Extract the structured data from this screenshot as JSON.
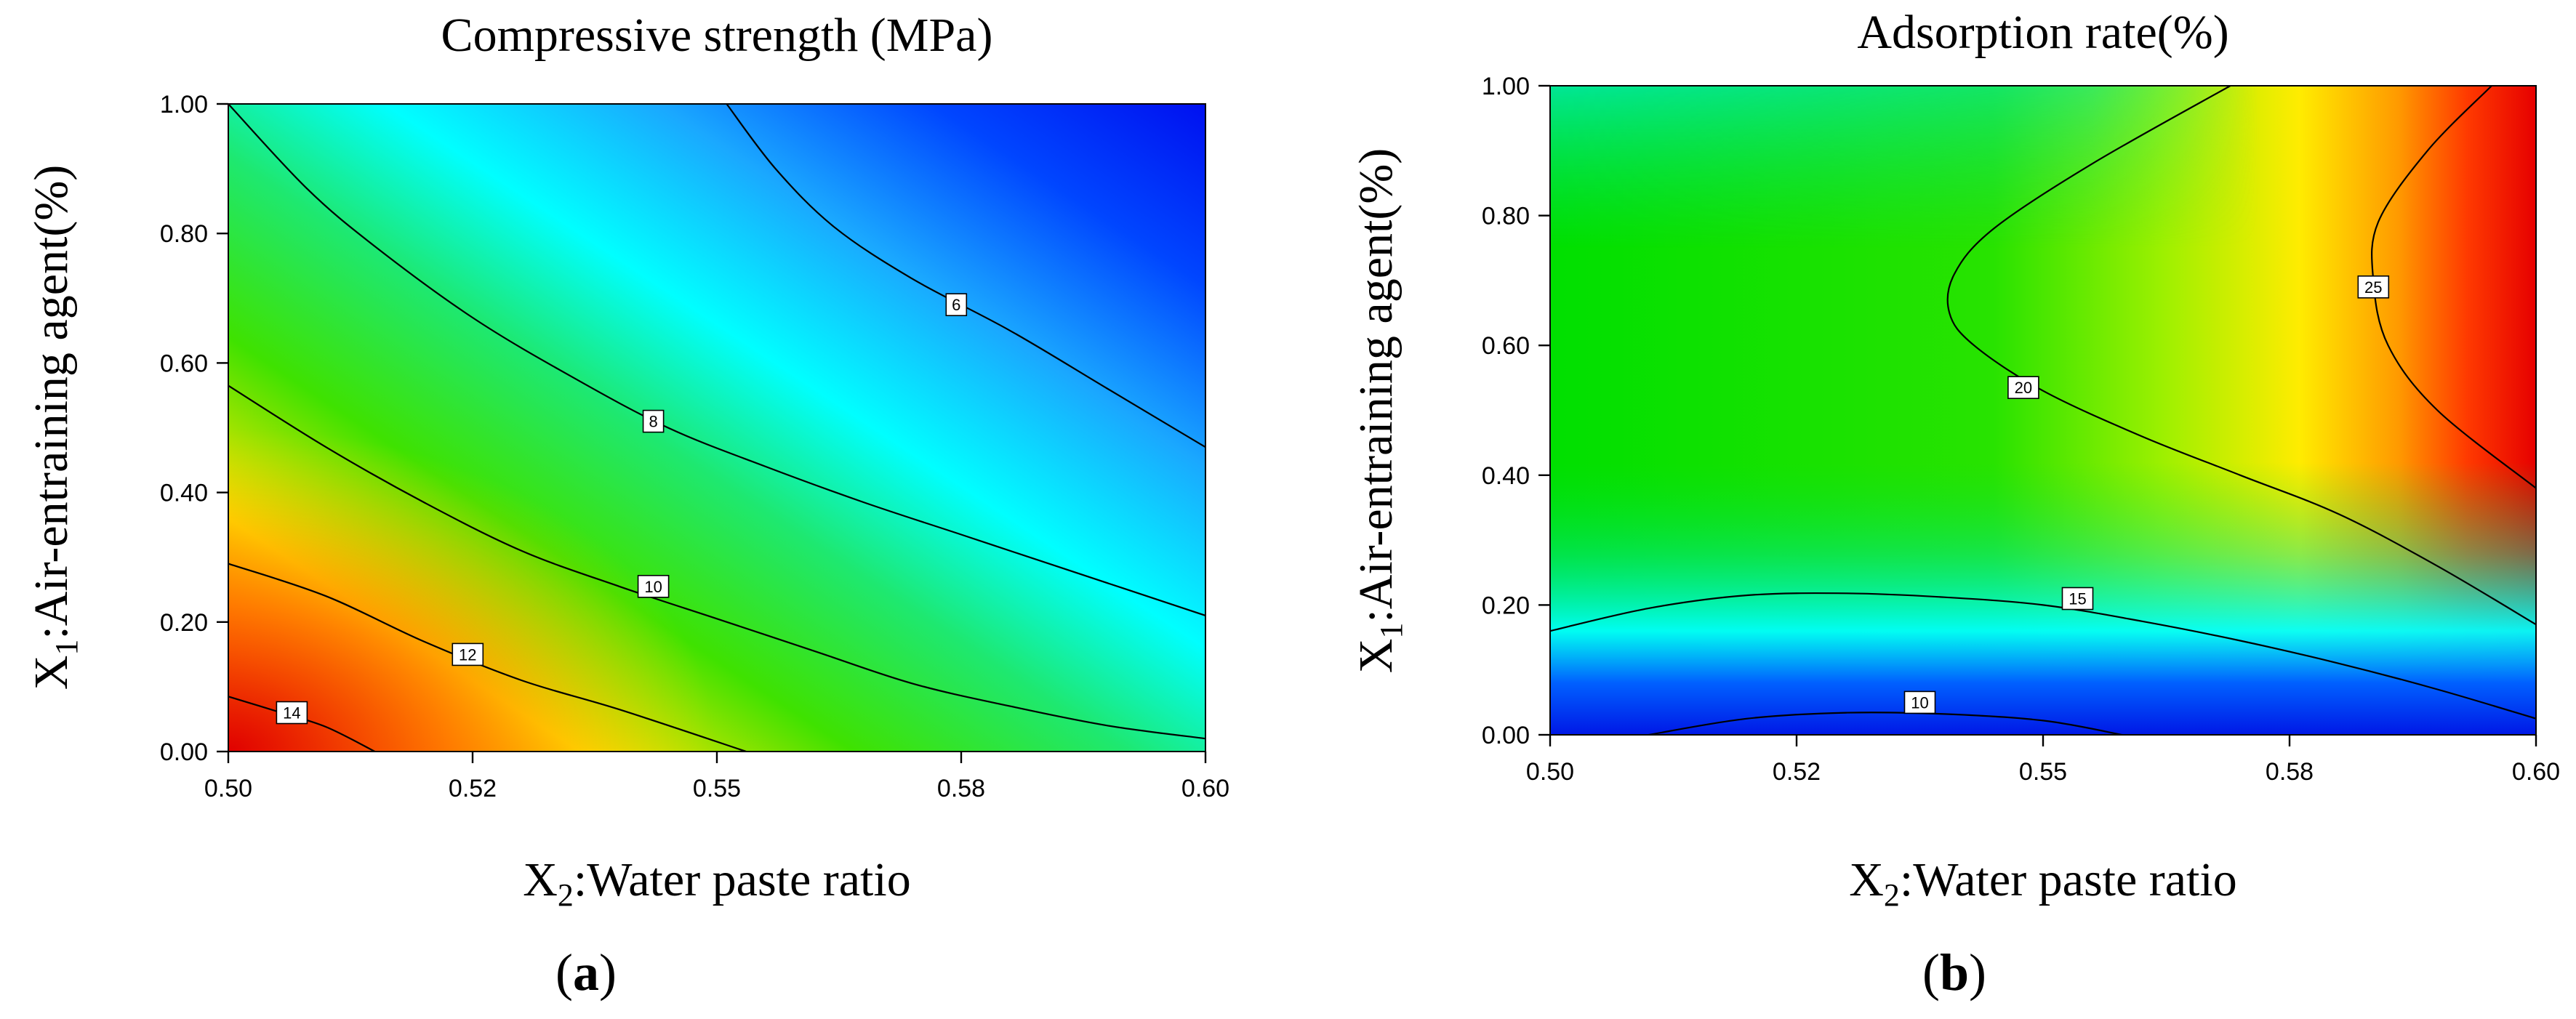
{
  "figure": {
    "panels": [
      {
        "panel_label": "a",
        "panel_label_text": "(a)",
        "chart_data": {
          "type": "heatmap",
          "subtype": "contour",
          "title": "Compressive strength (MPa)",
          "xlabel": "X2:Water paste ratio",
          "ylabel": "X1:Air-entraining agent(%)",
          "xlabel_main": "X",
          "xlabel_sub": "2",
          "xlabel_rest": ":Water paste ratio",
          "ylabel_main": "X",
          "ylabel_sub": "1",
          "ylabel_rest": ":Air-entraining agent(%)",
          "xlim": [
            0.5,
            0.6
          ],
          "ylim": [
            0.0,
            1.0
          ],
          "x_ticks": [
            0.5,
            0.525,
            0.55,
            0.575,
            0.6
          ],
          "x_tick_labels": [
            "0.50",
            "0.52",
            "0.55",
            "0.58",
            "0.60"
          ],
          "y_ticks": [
            0.0,
            0.2,
            0.4,
            0.6,
            0.8,
            1.0
          ],
          "y_tick_labels": [
            "0.00",
            "0.20",
            "0.40",
            "0.60",
            "0.80",
            "1.00"
          ],
          "color_scale": "rainbow (blue = low, red = high)",
          "z_range_estimate": [
            4.5,
            15.2
          ],
          "contours": [
            {
              "level": 14,
              "label": "14",
              "label_at": [
                0.5065,
                0.06
              ],
              "points": [
                [
                  0.5,
                  0.085
                ],
                [
                  0.505,
                  0.062
                ],
                [
                  0.51,
                  0.038
                ],
                [
                  0.515,
                  0.0
                ]
              ]
            },
            {
              "level": 12,
              "label": "12",
              "label_at": [
                0.5245,
                0.15
              ],
              "points": [
                [
                  0.5,
                  0.29
                ],
                [
                  0.51,
                  0.24
                ],
                [
                  0.52,
                  0.17
                ],
                [
                  0.53,
                  0.11
                ],
                [
                  0.54,
                  0.065
                ],
                [
                  0.553,
                  0.0
                ]
              ]
            },
            {
              "level": 10,
              "label": "10",
              "label_at": [
                0.5435,
                0.255
              ],
              "points": [
                [
                  0.5,
                  0.565
                ],
                [
                  0.51,
                  0.47
                ],
                [
                  0.52,
                  0.385
                ],
                [
                  0.53,
                  0.31
                ],
                [
                  0.54,
                  0.255
                ],
                [
                  0.55,
                  0.205
                ],
                [
                  0.56,
                  0.155
                ],
                [
                  0.57,
                  0.105
                ],
                [
                  0.58,
                  0.07
                ],
                [
                  0.59,
                  0.04
                ],
                [
                  0.6,
                  0.02
                ]
              ]
            },
            {
              "level": 8,
              "label": "8",
              "label_at": [
                0.5435,
                0.51
              ],
              "points": [
                [
                  0.5,
                  1.0
                ],
                [
                  0.508,
                  0.87
                ],
                [
                  0.515,
                  0.78
                ],
                [
                  0.525,
                  0.67
                ],
                [
                  0.535,
                  0.58
                ],
                [
                  0.545,
                  0.5
                ],
                [
                  0.555,
                  0.44
                ],
                [
                  0.565,
                  0.385
                ],
                [
                  0.575,
                  0.335
                ],
                [
                  0.585,
                  0.285
                ],
                [
                  0.6,
                  0.21
                ]
              ]
            },
            {
              "level": 6,
              "label": "6",
              "label_at": [
                0.5745,
                0.69
              ],
              "points": [
                [
                  0.551,
                  1.0
                ],
                [
                  0.556,
                  0.9
                ],
                [
                  0.562,
                  0.81
                ],
                [
                  0.57,
                  0.73
                ],
                [
                  0.58,
                  0.65
                ],
                [
                  0.59,
                  0.56
                ],
                [
                  0.6,
                  0.47
                ]
              ]
            }
          ]
        }
      },
      {
        "panel_label": "b",
        "panel_label_text": "(b)",
        "chart_data": {
          "type": "heatmap",
          "subtype": "contour",
          "title": "Adsorption rate(%)",
          "xlabel": "X2:Water paste ratio",
          "ylabel": "X1:Air-entraining agent(%)",
          "xlabel_main": "X",
          "xlabel_sub": "2",
          "xlabel_rest": ":Water paste ratio",
          "ylabel_main": "X",
          "ylabel_sub": "1",
          "ylabel_rest": ":Air-entraining agent(%)",
          "xlim": [
            0.5,
            0.6
          ],
          "ylim": [
            0.0,
            1.0
          ],
          "x_ticks": [
            0.5,
            0.525,
            0.55,
            0.575,
            0.6
          ],
          "x_tick_labels": [
            "0.50",
            "0.52",
            "0.55",
            "0.58",
            "0.60"
          ],
          "y_ticks": [
            0.0,
            0.2,
            0.4,
            0.6,
            0.8,
            1.0
          ],
          "y_tick_labels": [
            "0.00",
            "0.20",
            "0.40",
            "0.60",
            "0.80",
            "1.00"
          ],
          "color_scale": "rainbow (blue = low, red = high)",
          "z_range_estimate": [
            8.5,
            27.5
          ],
          "contours": [
            {
              "level": 10,
              "label": "10",
              "label_at": [
                0.5375,
                0.05
              ],
              "points": [
                [
                  0.51,
                  0.0
                ],
                [
                  0.52,
                  0.025
                ],
                [
                  0.53,
                  0.034
                ],
                [
                  0.54,
                  0.032
                ],
                [
                  0.55,
                  0.022
                ],
                [
                  0.558,
                  0.0
                ]
              ]
            },
            {
              "level": 15,
              "label": "15",
              "label_at": [
                0.5535,
                0.21
              ],
              "points": [
                [
                  0.5,
                  0.16
                ],
                [
                  0.51,
                  0.195
                ],
                [
                  0.52,
                  0.215
                ],
                [
                  0.53,
                  0.218
                ],
                [
                  0.54,
                  0.212
                ],
                [
                  0.55,
                  0.2
                ],
                [
                  0.56,
                  0.175
                ],
                [
                  0.57,
                  0.145
                ],
                [
                  0.58,
                  0.11
                ],
                [
                  0.59,
                  0.07
                ],
                [
                  0.6,
                  0.025
                ]
              ]
            },
            {
              "level": 20,
              "label": "20",
              "label_at": [
                0.548,
                0.535
              ],
              "points": [
                [
                  0.569,
                  1.0
                ],
                [
                  0.555,
                  0.88
                ],
                [
                  0.545,
                  0.78
                ],
                [
                  0.541,
                  0.71
                ],
                [
                  0.5405,
                  0.65
                ],
                [
                  0.543,
                  0.6
                ],
                [
                  0.55,
                  0.53
                ],
                [
                  0.56,
                  0.46
                ],
                [
                  0.57,
                  0.4
                ],
                [
                  0.58,
                  0.34
                ],
                [
                  0.59,
                  0.26
                ],
                [
                  0.6,
                  0.17
                ]
              ]
            },
            {
              "level": 25,
              "label": "25",
              "label_at": [
                0.5835,
                0.69
              ],
              "points": [
                [
                  0.5955,
                  1.0
                ],
                [
                  0.589,
                  0.9
                ],
                [
                  0.584,
                  0.79
                ],
                [
                  0.5835,
                  0.7
                ],
                [
                  0.585,
                  0.6
                ],
                [
                  0.59,
                  0.5
                ],
                [
                  0.6,
                  0.38
                ]
              ]
            }
          ]
        }
      }
    ]
  }
}
